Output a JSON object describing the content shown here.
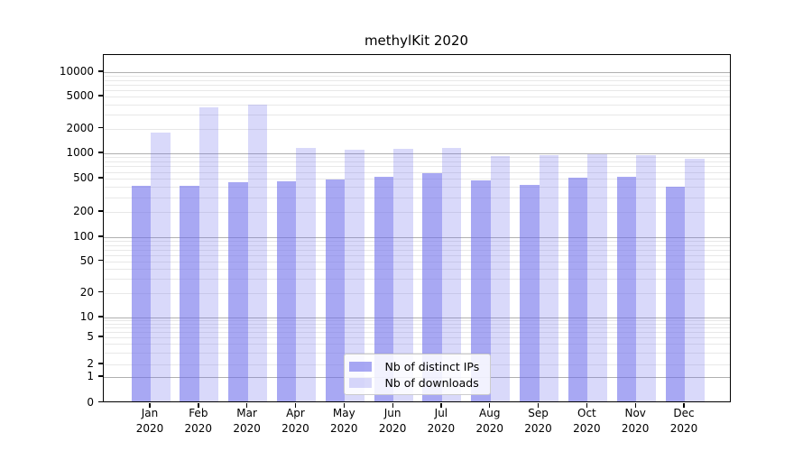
{
  "chart_data": {
    "type": "bar",
    "title": "methylKit 2020",
    "x_months": [
      "Jan",
      "Feb",
      "Mar",
      "Apr",
      "May",
      "Jun",
      "Jul",
      "Aug",
      "Sep",
      "Oct",
      "Nov",
      "Dec"
    ],
    "x_year": "2020",
    "series": [
      {
        "name": "Nb of distinct IPs",
        "key": "distinct-ips",
        "color": "rgba(110,110,235,0.60)",
        "legend_hex": "#a9a9f0",
        "values": [
          390,
          390,
          430,
          445,
          470,
          500,
          550,
          455,
          400,
          485,
          505,
          385
        ]
      },
      {
        "name": "Nb of downloads",
        "key": "downloads",
        "color": "rgba(110,110,235,0.26)",
        "legend_hex": "#d9d9f8",
        "values": [
          1700,
          3500,
          3800,
          1120,
          1040,
          1080,
          1120,
          875,
          910,
          925,
          910,
          820
        ]
      }
    ],
    "y_ticks": [
      0,
      1,
      2,
      5,
      10,
      20,
      50,
      100,
      200,
      500,
      1000,
      2000,
      5000,
      10000
    ],
    "y_scale": "symlog",
    "ylim": [
      0,
      16000
    ],
    "grid": "horizontal major+minor",
    "legend_position": "lower center"
  }
}
